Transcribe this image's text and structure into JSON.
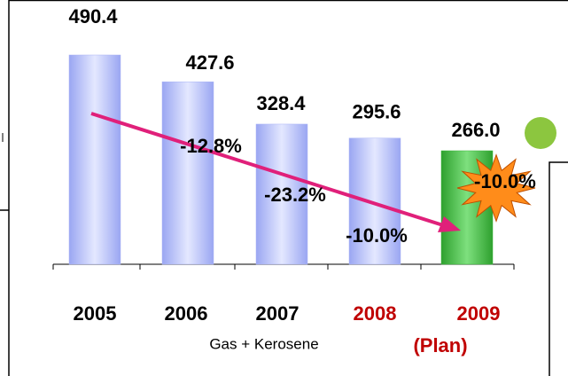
{
  "chart_data": {
    "type": "bar",
    "categories": [
      "2005",
      "2006",
      "2007",
      "2008",
      "2009"
    ],
    "category_colors": [
      "#000000",
      "#000000",
      "#000000",
      "#c00000",
      "#c00000"
    ],
    "values": [
      490.4,
      427.6,
      328.4,
      295.6,
      266.0
    ],
    "value_labels": [
      "490.4",
      "427.6",
      "328.4",
      "295.6",
      "266.0"
    ],
    "colors": [
      "#aab4f6",
      "#aab4f6",
      "#aab4f6",
      "#aab4f6",
      "#3cb83c"
    ],
    "annotations": [
      "-12.8%",
      "-23.2%",
      "-10.0%",
      "-10.0%"
    ],
    "xlabel": "Gas + Kerosene",
    "note": "(Plan)",
    "arrow_color": "#e0207a"
  }
}
